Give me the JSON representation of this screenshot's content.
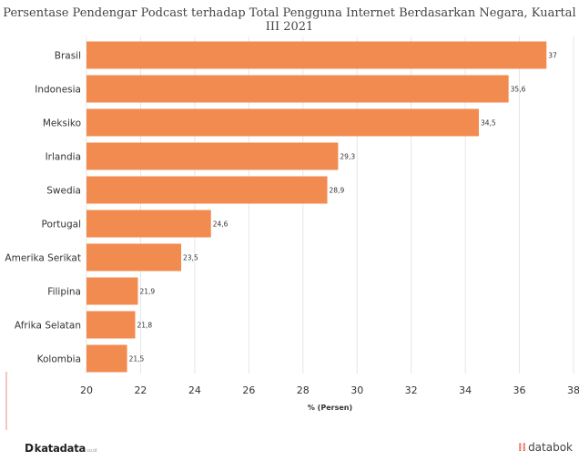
{
  "chart_data": {
    "type": "bar",
    "orientation": "horizontal",
    "title": "Persentase Pendengar Podcast terhadap Total Pengguna Internet Berdasarkan Negara, Kuartal III 2021",
    "xlabel": "% (Persen)",
    "ylabel": "",
    "xlim": [
      20,
      38
    ],
    "xticks": [
      "20",
      "22",
      "24",
      "26",
      "28",
      "30",
      "32",
      "34",
      "36",
      "38"
    ],
    "grid": true,
    "bar_color": "#f28b4f",
    "categories": [
      "Brasil",
      "Indonesia",
      "Meksiko",
      "Irlandia",
      "Swedia",
      "Portugal",
      "Amerika Serikat",
      "Filipina",
      "Afrika Selatan",
      "Kolombia"
    ],
    "values": [
      37,
      35.6,
      34.5,
      29.3,
      28.9,
      24.6,
      23.5,
      21.9,
      21.8,
      21.5
    ],
    "value_labels": [
      "37",
      "35,6",
      "34,5",
      "29,3",
      "28,9",
      "24,6",
      "23,5",
      "21,9",
      "21,8",
      "21,5"
    ]
  },
  "footer": {
    "brand_left": "katadata",
    "brand_left_suffix": ".co.id",
    "brand_right": "databok"
  }
}
